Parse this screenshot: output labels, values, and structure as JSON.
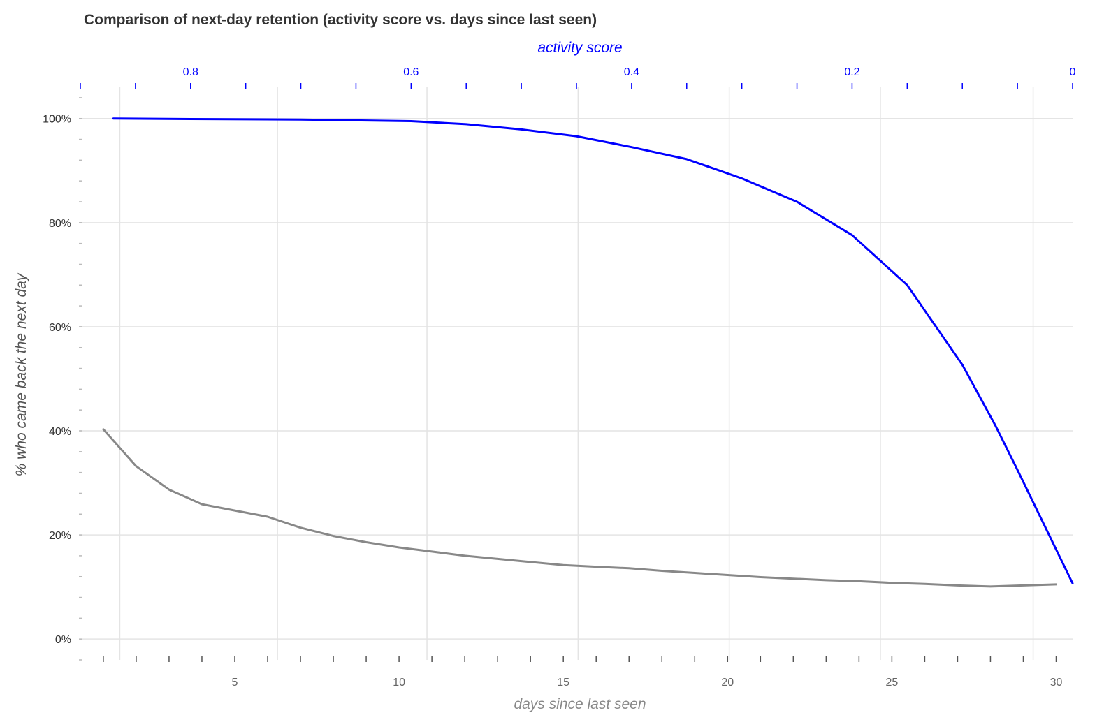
{
  "chart_data": {
    "type": "line",
    "title": "Comparison of next-day retention (activity score vs. days since last seen)",
    "xlabel": "days since last seen",
    "x2label": "activity score",
    "ylabel": "% who came back the next day",
    "xlim": [
      0.3,
      30.5
    ],
    "x2lim": [
      0.9,
      0
    ],
    "ylim": [
      -4,
      106
    ],
    "x_ticks": [
      5,
      10,
      15,
      20,
      25,
      30
    ],
    "x_tick_labels": [
      "5",
      "10",
      "15",
      "20",
      "25",
      "30"
    ],
    "x2_ticks": [
      0.8,
      0.6,
      0.4,
      0.2,
      0
    ],
    "x2_tick_labels": [
      "0.8",
      "0.6",
      "0.4",
      "0.2",
      "0"
    ],
    "y_ticks": [
      0,
      20,
      40,
      60,
      80,
      100
    ],
    "y_tick_labels": [
      "0%",
      "20%",
      "40%",
      "60%",
      "80%",
      "100%"
    ],
    "grid": true,
    "legend": "none",
    "colors": {
      "title": "#333333",
      "grid": "#e4e4e4",
      "bottom_axis": "#666666",
      "top_axis": "#0000ff",
      "ylabel": "#555555",
      "xlabel": "#888888"
    },
    "series": [
      {
        "axis": "top",
        "color": "#0000ff",
        "x": [
          0.87,
          0.8,
          0.7,
          0.6,
          0.55,
          0.5,
          0.45,
          0.4,
          0.35,
          0.3,
          0.25,
          0.2,
          0.15,
          0.1,
          0.07,
          0.05,
          0.0
        ],
        "y": [
          100,
          99.9,
          99.8,
          99.5,
          98.9,
          97.9,
          96.6,
          94.5,
          92.2,
          88.5,
          84.0,
          77.6,
          68.0,
          52.7,
          41.0,
          32.5,
          10.7
        ]
      },
      {
        "axis": "bottom",
        "color": "#888888",
        "x": [
          1,
          2,
          3,
          4,
          5,
          6,
          7,
          8,
          9,
          10,
          11,
          12,
          13,
          14,
          15,
          16,
          17,
          18,
          19,
          20,
          21,
          22,
          23,
          24,
          25,
          26,
          27,
          28,
          29,
          30
        ],
        "y": [
          40.3,
          33.2,
          28.7,
          25.9,
          24.7,
          23.5,
          21.4,
          19.8,
          18.6,
          17.6,
          16.8,
          16.0,
          15.4,
          14.8,
          14.2,
          13.9,
          13.6,
          13.1,
          12.7,
          12.3,
          11.9,
          11.6,
          11.3,
          11.1,
          10.8,
          10.6,
          10.3,
          10.1,
          10.3,
          10.5
        ]
      }
    ]
  }
}
